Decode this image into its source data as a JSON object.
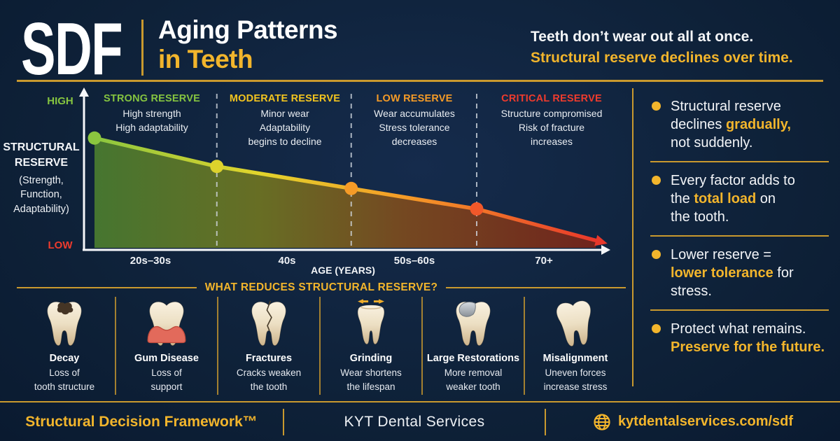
{
  "header": {
    "logo": "SDF",
    "title_line1": "Aging Patterns",
    "title_line2": "in Teeth",
    "tagline_line1": "Teeth don’t wear out all at once.",
    "tagline_line2": "Structural reserve declines over time."
  },
  "chart_data": {
    "type": "line",
    "title": "Structural reserve decline with age",
    "xlabel": "AGE (YEARS)",
    "ylabel": "STRUCTURAL\nRESERVE",
    "ylabel_note": "(Strength,\nFunction,\nAdaptability)",
    "y_axis_top_label": "HIGH",
    "y_axis_bottom_label": "LOW",
    "categories": [
      "20s–30s",
      "40s",
      "50s–60s",
      "70+"
    ],
    "x": [
      0.02,
      0.253,
      0.509,
      0.748,
      0.975
    ],
    "values": [
      71,
      53,
      39,
      26,
      6
    ],
    "ylim": [
      0,
      100
    ],
    "legend": "none",
    "grid": "dashed vertical zone dividers at points 2-4",
    "zone_divider_point_indexes": [
      1,
      2,
      3
    ],
    "zones": [
      {
        "title": "STRONG RESERVE",
        "color": "#85c440",
        "desc": "High strength\nHigh adaptability"
      },
      {
        "title": "MODERATE RESERVE",
        "color": "#f2c41f",
        "desc": "Minor wear\nAdaptability\nbegins to decline"
      },
      {
        "title": "LOW RESERVE",
        "color": "#f59b27",
        "desc": "Wear accumulates\nStress tolerance\ndecreases"
      },
      {
        "title": "CRITICAL RESERVE",
        "color": "#ef3b2d",
        "desc": "Structure compromised\nRisk of fracture\nincreases"
      }
    ],
    "dot_colors": [
      "#8bc63f",
      "#ddd22c",
      "#f59b27",
      "#f1582a"
    ],
    "arrow_color": "#e8382b",
    "axis_color": "#f5f7fa",
    "divider_color": "#cfd6de",
    "line_gradient": [
      {
        "offset": 0,
        "color": "#8bc63f"
      },
      {
        "offset": 0.33,
        "color": "#e2d42c"
      },
      {
        "offset": 0.62,
        "color": "#f59b27"
      },
      {
        "offset": 1,
        "color": "#e8382b"
      }
    ],
    "area_gradient": [
      {
        "offset": 0,
        "color": "#4a7c2f"
      },
      {
        "offset": 0.33,
        "color": "#6e7322"
      },
      {
        "offset": 0.62,
        "color": "#7c4a1e"
      },
      {
        "offset": 1,
        "color": "#77241a"
      }
    ]
  },
  "factors_section": {
    "heading": "WHAT REDUCES STRUCTURAL RESERVE?",
    "factors": [
      {
        "name": "Decay",
        "desc": "Loss of\ntooth structure",
        "icon": "decay-tooth"
      },
      {
        "name": "Gum Disease",
        "desc": "Loss of\nsupport",
        "icon": "gum-disease-tooth"
      },
      {
        "name": "Fractures",
        "desc": "Cracks weaken\nthe tooth",
        "icon": "cracked-tooth"
      },
      {
        "name": "Grinding",
        "desc": "Wear shortens\nthe lifespan",
        "icon": "grinding-tooth"
      },
      {
        "name": "Large Restorations",
        "desc": "More removal\nweaker tooth",
        "icon": "restored-tooth"
      },
      {
        "name": "Misalignment",
        "desc": "Uneven forces\nincrease stress",
        "icon": "misaligned-tooth"
      }
    ]
  },
  "sidebar": {
    "bullets": [
      {
        "segments": [
          {
            "t": "Structural reserve\ndeclines "
          },
          {
            "t": "gradually,",
            "gold": true
          },
          {
            "t": "\nnot suddenly."
          }
        ]
      },
      {
        "segments": [
          {
            "t": "Every factor adds to\nthe "
          },
          {
            "t": "total load",
            "gold": true
          },
          {
            "t": " on\nthe tooth."
          }
        ]
      },
      {
        "segments": [
          {
            "t": "Lower reserve =\n"
          },
          {
            "t": "lower tolerance",
            "gold": true
          },
          {
            "t": " for stress."
          }
        ]
      },
      {
        "segments": [
          {
            "t": "Protect what remains.\n"
          },
          {
            "t": "Preserve for the future.",
            "gold": true
          }
        ]
      }
    ]
  },
  "footer": {
    "brand": "Structural Decision Framework™",
    "company": "KYT Dental Services",
    "url": "kytdentalservices.com/sdf"
  },
  "colors": {
    "background": "#0e2139",
    "gold_text": "#f2b52c",
    "gold_line": "#c9992e",
    "green": "#85c440",
    "yellow": "#f2c41f",
    "orange": "#f59b27",
    "red": "#ef3b2d",
    "white": "#f4f6f8"
  }
}
